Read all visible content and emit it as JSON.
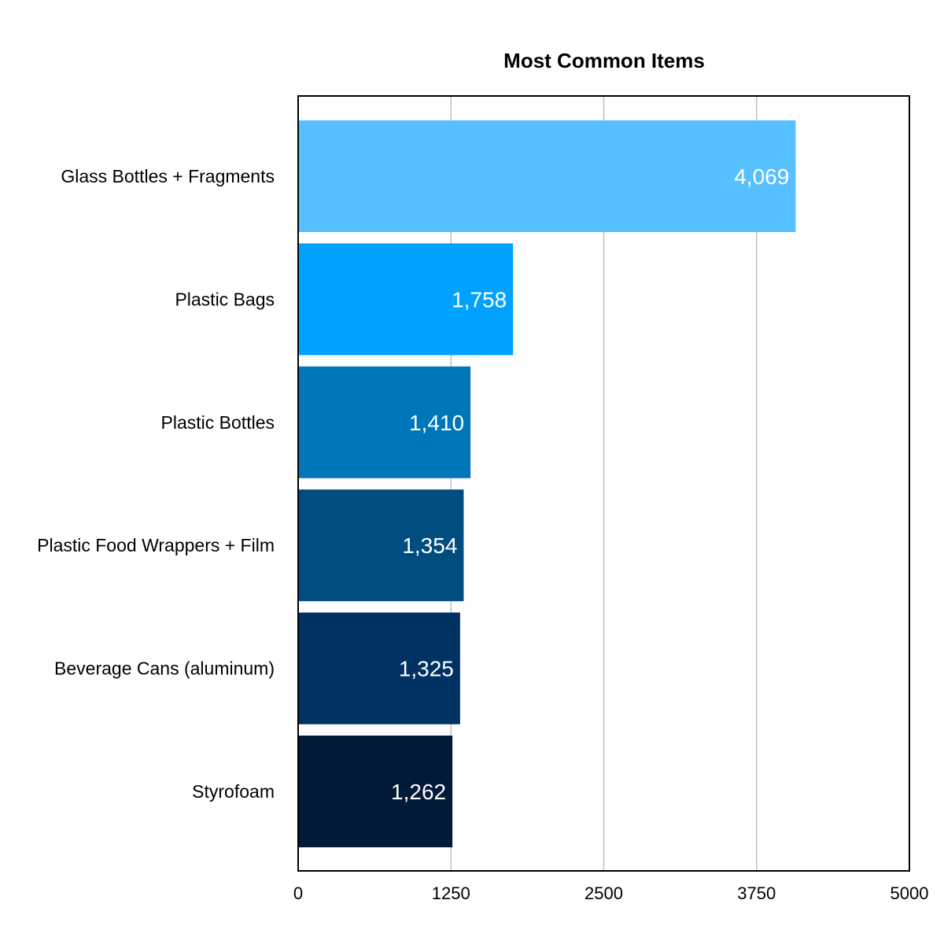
{
  "chart_data": {
    "type": "bar",
    "orientation": "horizontal",
    "title": "Most Common Items",
    "xlabel": "",
    "ylabel": "",
    "categories": [
      "Glass Bottles + Fragments",
      "Plastic Bags",
      "Plastic Bottles",
      "Plastic Food Wrappers + Film",
      "Beverage Cans (aluminum)",
      "Styrofoam"
    ],
    "values": [
      4069,
      1758,
      1410,
      1354,
      1325,
      1262
    ],
    "value_labels": [
      "4,069",
      "1,758",
      "1,410",
      "1,354",
      "1,325",
      "1,262"
    ],
    "bar_colors": [
      "#56BFFF",
      "#00A2FF",
      "#0076BA",
      "#004D80",
      "#003263",
      "#011A38"
    ],
    "xlim": [
      0,
      5000
    ],
    "xticks": [
      0,
      1250,
      2500,
      3750,
      5000
    ],
    "xtick_labels": [
      "0",
      "1250",
      "2500",
      "3750",
      "5000"
    ],
    "grid": "vertical",
    "legend": "none",
    "colors": {
      "frame": "#000000",
      "grid": "#BFBFBF",
      "text": "#000000",
      "value_label": "#FFFFFF"
    }
  }
}
